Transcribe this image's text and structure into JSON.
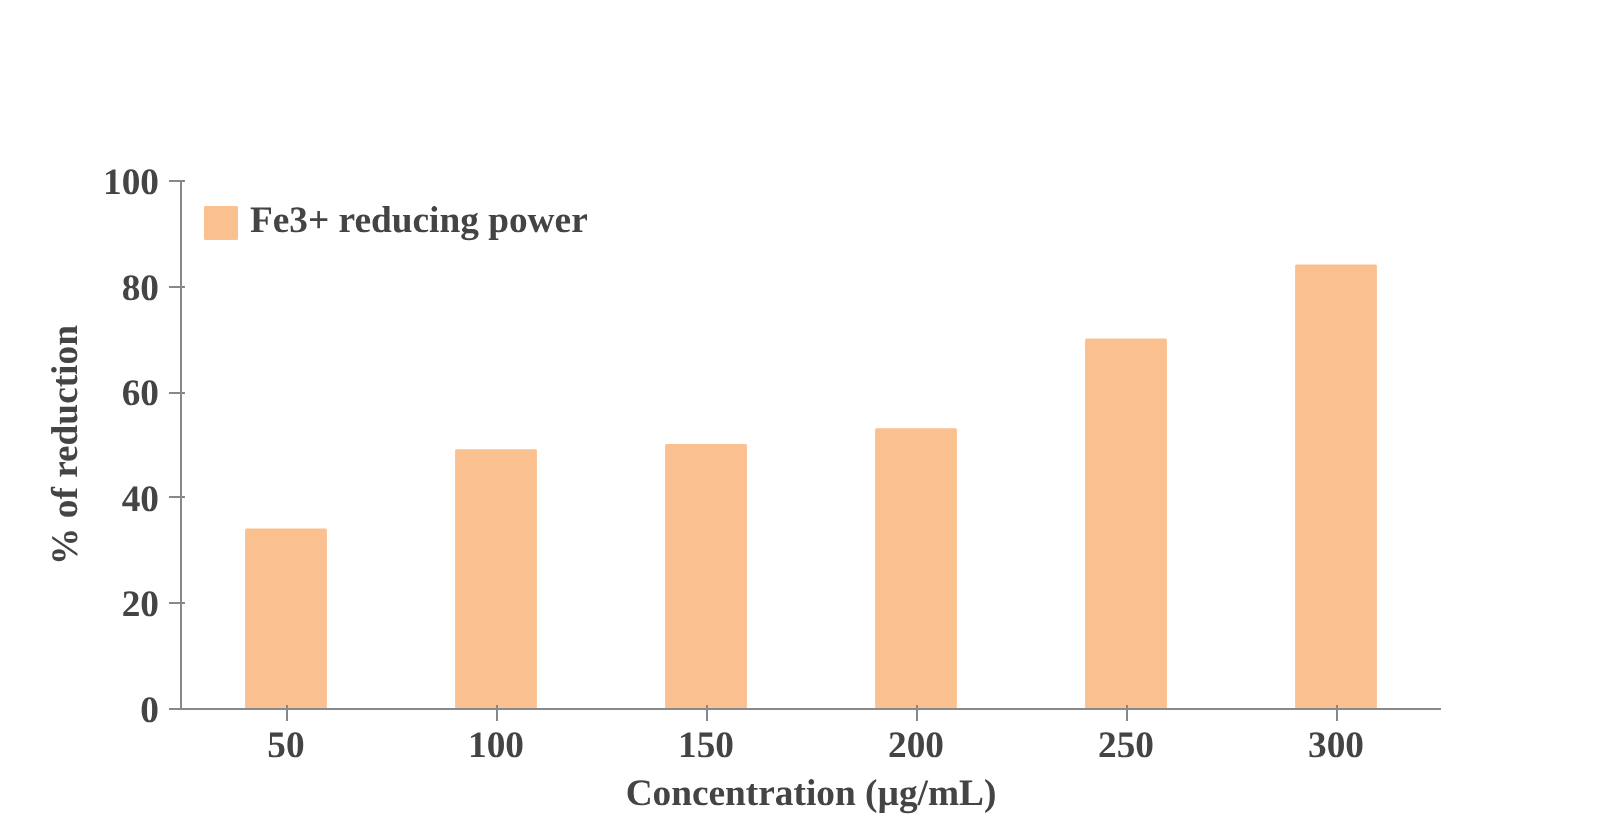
{
  "chart_data": {
    "type": "bar",
    "xlabel": "Concentration (µg/mL)",
    "ylabel": "% of reduction",
    "categories": [
      "50",
      "100",
      "150",
      "200",
      "250",
      "300"
    ],
    "series": [
      {
        "name": "Fe3+ reducing power",
        "color": "#fac090",
        "values": [
          34,
          49,
          50,
          53,
          70,
          84
        ]
      }
    ],
    "ylim": [
      0,
      100
    ],
    "yticks": [
      0,
      20,
      40,
      60,
      80,
      100
    ],
    "legend": "top left",
    "grid": false
  }
}
